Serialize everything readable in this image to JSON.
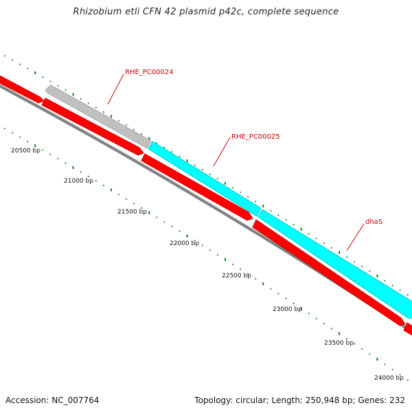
{
  "title": "Rhizobium etli CFN 42 plasmid p42c, complete sequence",
  "footer": {
    "accession": "Accession: NC_007764",
    "summary": "Topology: circular; Length: 250,948 bp; Genes: 232"
  },
  "colors": {
    "forward_cds": "#ff0000",
    "reverse_cds_cyan": "#00ffff",
    "reverse_cds_gray": "#c0c0c0",
    "backbone": "#808080",
    "tick": "#1a7a1a",
    "label": "#cc0000"
  },
  "ruler": {
    "labels": [
      "20500 bp",
      "21000 bp",
      "21500 bp",
      "22000 bp",
      "22500 bp",
      "23000 bp",
      "23500 bp",
      "24000 bp"
    ]
  },
  "features": [
    {
      "name": "RHE_PC00024",
      "strand": "reverse",
      "color": "gray"
    },
    {
      "name": "RHE_PC00025",
      "strand": "reverse",
      "color": "cyan"
    },
    {
      "name": "dhaS",
      "strand": "reverse",
      "color": "cyan"
    }
  ],
  "forward_gene_count_visible": 5
}
